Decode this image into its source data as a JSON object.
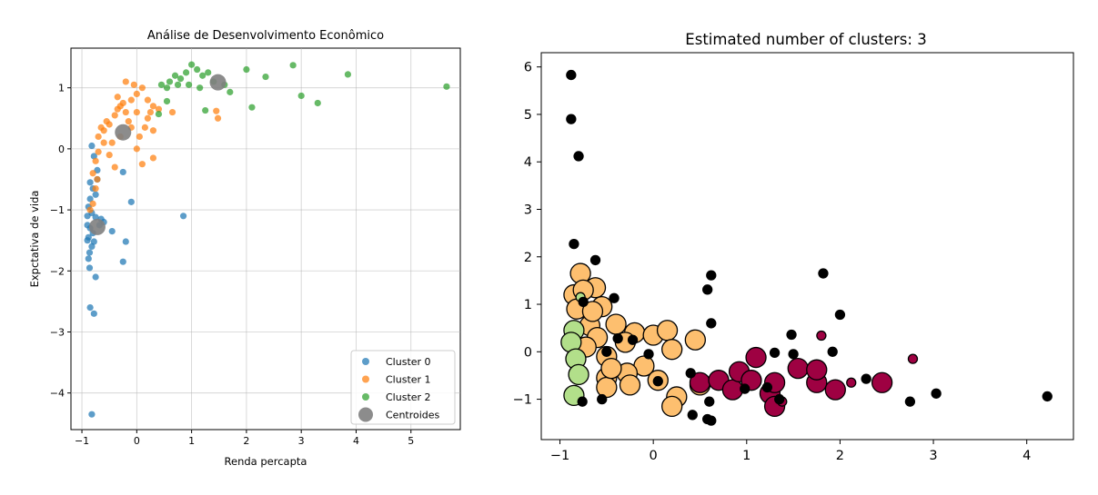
{
  "chart_data": [
    {
      "type": "scatter",
      "title": "Análise de Desenvolvimento Econômico",
      "xlabel": "Renda percapta",
      "ylabel": "Expctativa de vida",
      "xlim": [
        -1.2,
        5.9
      ],
      "ylim": [
        -4.6,
        1.65
      ],
      "xticks": [
        -1,
        0,
        1,
        2,
        3,
        4,
        5
      ],
      "yticks": [
        -4,
        -3,
        -2,
        -1,
        0,
        1
      ],
      "grid": true,
      "legend_position": "lower-right",
      "series": [
        {
          "name": "Cluster 0",
          "color": "#1f77b4",
          "points": [
            [
              -0.82,
              0.05
            ],
            [
              -0.78,
              -0.12
            ],
            [
              -0.72,
              -0.35
            ],
            [
              -0.85,
              -0.55
            ],
            [
              -0.8,
              -0.65
            ],
            [
              -0.75,
              -0.75
            ],
            [
              -0.85,
              -0.82
            ],
            [
              -0.88,
              -0.95
            ],
            [
              -0.82,
              -1.05
            ],
            [
              -0.9,
              -1.1
            ],
            [
              -0.75,
              -1.12
            ],
            [
              -0.65,
              -1.15
            ],
            [
              -0.6,
              -1.2
            ],
            [
              -0.45,
              -1.35
            ],
            [
              -0.85,
              -1.3
            ],
            [
              -0.8,
              -1.38
            ],
            [
              -0.88,
              -1.45
            ],
            [
              -0.9,
              -1.5
            ],
            [
              -0.78,
              -1.52
            ],
            [
              -0.82,
              -1.6
            ],
            [
              -0.86,
              -1.7
            ],
            [
              -0.88,
              -1.8
            ],
            [
              -0.86,
              -1.95
            ],
            [
              -0.75,
              -2.1
            ],
            [
              -0.85,
              -2.6
            ],
            [
              -0.78,
              -2.7
            ],
            [
              -0.82,
              -4.35
            ],
            [
              -0.25,
              -0.38
            ],
            [
              -0.1,
              -0.87
            ],
            [
              0.85,
              -1.1
            ],
            [
              -0.2,
              -1.52
            ],
            [
              -0.25,
              -1.85
            ],
            [
              -0.72,
              -0.5
            ],
            [
              -0.68,
              -1.25
            ],
            [
              -0.9,
              -1.25
            ]
          ]
        },
        {
          "name": "Cluster 1",
          "color": "#ff7f0e",
          "points": [
            [
              -0.7,
              0.2
            ],
            [
              -0.6,
              0.3
            ],
            [
              -0.55,
              0.45
            ],
            [
              -0.5,
              0.4
            ],
            [
              -0.4,
              0.55
            ],
            [
              -0.35,
              0.65
            ],
            [
              -0.3,
              0.7
            ],
            [
              -0.25,
              0.75
            ],
            [
              -0.2,
              0.6
            ],
            [
              -0.1,
              0.8
            ],
            [
              0.0,
              0.9
            ],
            [
              0.1,
              1.0
            ],
            [
              -0.2,
              1.1
            ],
            [
              -0.05,
              1.05
            ],
            [
              0.2,
              0.8
            ],
            [
              0.3,
              0.7
            ],
            [
              0.4,
              0.65
            ],
            [
              0.2,
              0.5
            ],
            [
              0.15,
              0.35
            ],
            [
              0.3,
              0.3
            ],
            [
              -0.6,
              0.1
            ],
            [
              -0.7,
              -0.05
            ],
            [
              -0.75,
              -0.2
            ],
            [
              -0.8,
              -0.4
            ],
            [
              -0.72,
              -0.5
            ],
            [
              -0.75,
              -0.65
            ],
            [
              -0.8,
              -0.9
            ],
            [
              -0.85,
              -1.0
            ],
            [
              0.0,
              0.0
            ],
            [
              0.1,
              -0.25
            ],
            [
              0.3,
              -0.15
            ],
            [
              0.65,
              0.6
            ],
            [
              1.48,
              0.5
            ],
            [
              1.45,
              0.62
            ],
            [
              -0.4,
              -0.3
            ],
            [
              -0.3,
              0.2
            ],
            [
              -0.45,
              0.1
            ],
            [
              0.05,
              0.2
            ],
            [
              -0.15,
              0.45
            ],
            [
              0.25,
              0.6
            ],
            [
              -0.5,
              -0.1
            ],
            [
              -0.65,
              0.35
            ],
            [
              -0.35,
              0.85
            ],
            [
              0.0,
              0.6
            ],
            [
              -0.1,
              0.35
            ]
          ]
        },
        {
          "name": "Cluster 2",
          "color": "#2ca02c",
          "points": [
            [
              0.45,
              1.05
            ],
            [
              0.55,
              1.0
            ],
            [
              0.6,
              1.1
            ],
            [
              0.7,
              1.2
            ],
            [
              0.8,
              1.15
            ],
            [
              0.9,
              1.25
            ],
            [
              1.0,
              1.38
            ],
            [
              1.1,
              1.3
            ],
            [
              1.2,
              1.2
            ],
            [
              1.3,
              1.25
            ],
            [
              1.4,
              1.1
            ],
            [
              1.6,
              1.05
            ],
            [
              2.0,
              1.3
            ],
            [
              2.35,
              1.18
            ],
            [
              2.85,
              1.37
            ],
            [
              3.85,
              1.22
            ],
            [
              5.65,
              1.02
            ],
            [
              3.0,
              0.87
            ],
            [
              3.3,
              0.75
            ],
            [
              2.1,
              0.68
            ],
            [
              1.25,
              0.63
            ],
            [
              0.4,
              0.57
            ],
            [
              0.55,
              0.78
            ],
            [
              1.7,
              0.93
            ],
            [
              0.95,
              1.05
            ],
            [
              1.15,
              1.0
            ],
            [
              0.75,
              1.05
            ]
          ]
        },
        {
          "name": "Centroides",
          "color": "#808080",
          "points": [
            [
              -0.25,
              0.27
            ],
            [
              -0.72,
              -1.28
            ],
            [
              1.48,
              1.09
            ]
          ]
        }
      ]
    },
    {
      "type": "scatter",
      "title": "Estimated number of clusters: 3",
      "xlabel": "",
      "ylabel": "",
      "xlim": [
        -1.2,
        4.5
      ],
      "ylim": [
        -1.85,
        6.3
      ],
      "xticks": [
        -1,
        0,
        1,
        2,
        3,
        4
      ],
      "yticks": [
        -1,
        0,
        1,
        2,
        3,
        4,
        5,
        6
      ],
      "grid": false,
      "legend_position": "none",
      "series": [
        {
          "color": "#fdbf6f",
          "points": [
            [
              -0.78,
              1.65
            ],
            [
              -0.62,
              1.35
            ],
            [
              -0.85,
              1.2
            ],
            [
              -0.55,
              0.95
            ],
            [
              -0.82,
              0.9
            ],
            [
              -0.68,
              0.55
            ],
            [
              -0.4,
              0.58
            ],
            [
              -0.2,
              0.4
            ],
            [
              0.0,
              0.35
            ],
            [
              0.15,
              0.45
            ],
            [
              -0.6,
              0.3
            ],
            [
              -0.3,
              0.2
            ],
            [
              0.45,
              0.25
            ],
            [
              0.2,
              0.05
            ],
            [
              -0.72,
              0.1
            ],
            [
              -0.5,
              -0.1
            ],
            [
              -0.1,
              -0.3
            ],
            [
              -0.28,
              -0.45
            ],
            [
              -0.5,
              -0.55
            ],
            [
              -0.25,
              -0.7
            ],
            [
              0.25,
              -0.95
            ],
            [
              0.2,
              -1.15
            ],
            [
              -0.5,
              -0.75
            ],
            [
              0.5,
              -0.7
            ],
            [
              -0.75,
              1.3
            ],
            [
              -0.45,
              -0.35
            ],
            [
              -0.65,
              0.85
            ],
            [
              0.05,
              -0.6
            ]
          ],
          "sizes": [
            1,
            1,
            1,
            1,
            1,
            1,
            1,
            1,
            1,
            1,
            1,
            1,
            1,
            1,
            1,
            1,
            1,
            1,
            1,
            1,
            1,
            1,
            1,
            1,
            1,
            1,
            1,
            1
          ]
        },
        {
          "color": "#b2df8a",
          "points": [
            [
              -0.85,
              0.45
            ],
            [
              -0.88,
              0.2
            ],
            [
              -0.83,
              -0.15
            ],
            [
              -0.8,
              -0.48
            ],
            [
              -0.85,
              -0.92
            ],
            [
              -0.78,
              1.15
            ]
          ],
          "sizes": [
            1,
            1,
            1,
            1,
            1,
            0.4
          ]
        },
        {
          "color": "#9e0142",
          "points": [
            [
              0.5,
              -0.65
            ],
            [
              0.7,
              -0.6
            ],
            [
              0.85,
              -0.8
            ],
            [
              0.92,
              -0.42
            ],
            [
              1.05,
              -0.6
            ],
            [
              1.1,
              -0.12
            ],
            [
              1.25,
              -0.88
            ],
            [
              1.3,
              -0.65
            ],
            [
              1.3,
              -1.15
            ],
            [
              1.55,
              -0.35
            ],
            [
              1.75,
              -0.65
            ],
            [
              1.75,
              -0.38
            ],
            [
              1.95,
              -0.8
            ],
            [
              2.45,
              -0.65
            ],
            [
              1.8,
              0.34
            ],
            [
              2.78,
              -0.15
            ],
            [
              2.12,
              -0.65
            ],
            [
              1.38,
              -1.05
            ]
          ],
          "sizes": [
            1,
            1,
            1,
            1,
            1,
            1,
            1,
            1,
            1,
            1,
            1,
            1,
            1,
            1,
            0.4,
            0.4,
            0.4,
            0.4
          ]
        },
        {
          "color": "#000000",
          "points": [
            [
              -0.88,
              5.83
            ],
            [
              -0.88,
              4.9
            ],
            [
              -0.8,
              4.12
            ],
            [
              -0.85,
              2.27
            ],
            [
              -0.62,
              1.93
            ],
            [
              0.62,
              1.61
            ],
            [
              0.58,
              1.31
            ],
            [
              -0.42,
              1.13
            ],
            [
              -0.75,
              1.05
            ],
            [
              0.62,
              0.6
            ],
            [
              -0.05,
              -0.05
            ],
            [
              0.05,
              -0.62
            ],
            [
              0.4,
              -0.45
            ],
            [
              0.6,
              -1.05
            ],
            [
              0.62,
              -1.45
            ],
            [
              0.58,
              -1.42
            ],
            [
              0.42,
              -1.33
            ],
            [
              -0.76,
              -1.05
            ],
            [
              1.3,
              -0.02
            ],
            [
              1.5,
              -0.05
            ],
            [
              1.48,
              0.36
            ],
            [
              1.92,
              0.0
            ],
            [
              2.0,
              0.78
            ],
            [
              1.82,
              1.65
            ],
            [
              2.28,
              -0.57
            ],
            [
              2.75,
              -1.05
            ],
            [
              3.03,
              -0.88
            ],
            [
              4.22,
              -0.94
            ],
            [
              -0.55,
              -1.0
            ],
            [
              -0.38,
              0.28
            ],
            [
              -0.22,
              0.25
            ],
            [
              0.98,
              -0.78
            ],
            [
              1.22,
              -0.75
            ],
            [
              1.35,
              -1.0
            ],
            [
              -0.5,
              0.0
            ]
          ],
          "sizes": [
            0.4,
            0.4,
            0.4,
            0.4,
            0.4,
            0.4,
            0.4,
            0.4,
            0.4,
            0.4,
            0.4,
            0.4,
            0.4,
            0.4,
            0.4,
            0.4,
            0.4,
            0.4,
            0.4,
            0.4,
            0.4,
            0.4,
            0.4,
            0.4,
            0.4,
            0.4,
            0.4,
            0.4,
            0.4,
            0.4,
            0.4,
            0.4,
            0.4,
            0.4,
            0.4
          ]
        }
      ]
    }
  ]
}
